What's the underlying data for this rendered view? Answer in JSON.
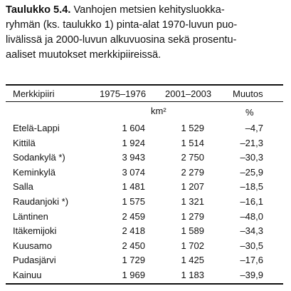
{
  "caption": {
    "label": "Taulukko 5.4.",
    "lines": [
      "Vanhojen metsien kehitysluokka-",
      "ryhmän (ks. taulukko 1) pinta-alat 1970-luvun puo-",
      "livälissä ja 2000-luvun alkuvuosina sekä prosentu-",
      "aaliset muutokset merkkipiireissä."
    ]
  },
  "table": {
    "headers": [
      "Merkkipiiri",
      "1975–1976",
      "2001–2003",
      "Muutos"
    ],
    "units": {
      "area": "km²",
      "change": "%"
    },
    "rows": [
      [
        "Etelä-Lappi",
        "1 604",
        "1 529",
        "–4,7"
      ],
      [
        "Kittilä",
        "1 924",
        "1 514",
        "–21,3"
      ],
      [
        "Sodankylä *)",
        "3 943",
        "2 750",
        "–30,3"
      ],
      [
        "Keminkylä",
        "3 074",
        "2 279",
        "–25,9"
      ],
      [
        "Salla",
        "1 481",
        "1 207",
        "–18,5"
      ],
      [
        "Raudanjoki *)",
        "1 575",
        "1 321",
        "–16,1"
      ],
      [
        "Läntinen",
        "2 459",
        "1 279",
        "–48,0"
      ],
      [
        "Itäkemijoki",
        "2 418",
        "1 589",
        "–34,3"
      ],
      [
        "Kuusamo",
        "2 450",
        "1 702",
        "–30,5"
      ],
      [
        "Pudasjärvi",
        "1 729",
        "1 425",
        "–17,6"
      ],
      [
        "Kainuu",
        "1 969",
        "1 183",
        "–39,9"
      ]
    ]
  }
}
